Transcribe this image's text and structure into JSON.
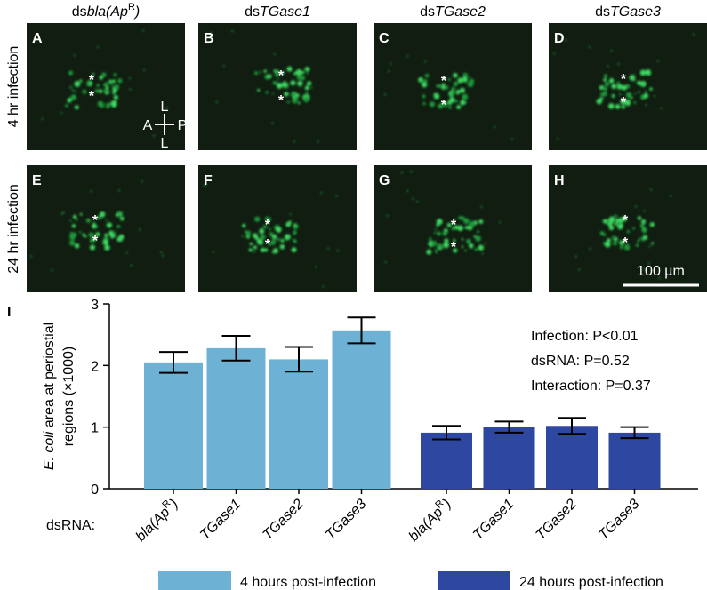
{
  "figure": {
    "columns": [
      {
        "plain": "ds",
        "italic": "bla(Ap",
        "sup": "R",
        "after": ")"
      },
      {
        "plain": "ds",
        "italic": "TGase1"
      },
      {
        "plain": "ds",
        "italic": "TGase2"
      },
      {
        "plain": "ds",
        "italic": "TGase3"
      }
    ],
    "rows": [
      "4 hr infection",
      "24 hr infection"
    ],
    "panels": [
      {
        "letter": "A",
        "asterisks": [
          "*",
          "*"
        ]
      },
      {
        "letter": "B",
        "asterisks": [
          "*",
          "*"
        ]
      },
      {
        "letter": "C",
        "asterisks": [
          "*",
          "*"
        ]
      },
      {
        "letter": "D",
        "asterisks": [
          "*",
          "*"
        ]
      },
      {
        "letter": "E",
        "asterisks": [
          "*",
          "*"
        ]
      },
      {
        "letter": "F",
        "asterisks": [
          "*",
          "*"
        ]
      },
      {
        "letter": "G",
        "asterisks": [
          "*",
          "*"
        ]
      },
      {
        "letter": "H",
        "asterisks": [
          "*",
          "*"
        ]
      }
    ],
    "compass": {
      "top": "L",
      "left": "A",
      "right": "P",
      "bottom": "L"
    },
    "scale_bar": "100 µm"
  },
  "chart_data": {
    "type": "bar",
    "panel_letter": "I",
    "ylabel": {
      "italic": "E. coli",
      "rest": " area at periostial",
      "line2": "regions (×1000)"
    },
    "group_label": "dsRNA:",
    "categories": [
      [
        "bla(Ap",
        "R",
        ")"
      ],
      [
        "TGase1"
      ],
      [
        "TGase2"
      ],
      [
        "TGase3"
      ]
    ],
    "series": [
      {
        "name": "4 hours post-infection",
        "color": "#6db2d5",
        "values": [
          2.05,
          2.28,
          2.1,
          2.57
        ],
        "errors": [
          0.17,
          0.2,
          0.2,
          0.21
        ]
      },
      {
        "name": "24 hours post-infection",
        "color": "#2e47a0",
        "values": [
          0.91,
          1.0,
          1.02,
          0.91
        ],
        "errors": [
          0.11,
          0.09,
          0.13,
          0.09
        ]
      }
    ],
    "ylim": [
      0,
      3
    ],
    "yticks": [
      0,
      1,
      2,
      3
    ],
    "annotations": [
      "Infection: P<0.01",
      "dsRNA: P=0.52",
      "Interaction: P=0.37"
    ]
  }
}
